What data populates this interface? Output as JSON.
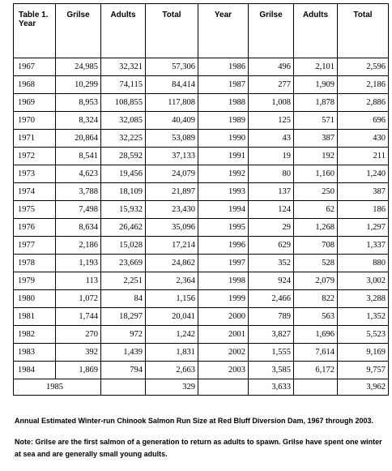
{
  "table": {
    "headers": [
      "Table 1.\nYear",
      "Grilse",
      "Adults",
      "Total",
      "Year",
      "Grilse",
      "Adults",
      "Total"
    ],
    "rows": [
      [
        "1967",
        "24,985",
        "32,321",
        "57,306",
        "1986",
        "496",
        "2,101",
        "2,596"
      ],
      [
        "1968",
        "10,299",
        "74,115",
        "84,414",
        "1987",
        "277",
        "1,909",
        "2,186"
      ],
      [
        "1969",
        "8,953",
        "108,855",
        "117,808",
        "1988",
        "1,008",
        "1,878",
        "2,886"
      ],
      [
        "1970",
        "8,324",
        "32,085",
        "40,409",
        "1989",
        "125",
        "571",
        "696"
      ],
      [
        "1971",
        "20,864",
        "32,225",
        "53,089",
        "1990",
        "43",
        "387",
        "430"
      ],
      [
        "1972",
        "8,541",
        "28,592",
        "37,133",
        "1991",
        "19",
        "192",
        "211"
      ],
      [
        "1973",
        "4,623",
        "19,456",
        "24,079",
        "1992",
        "80",
        "1,160",
        "1,240"
      ],
      [
        "1974",
        "3,788",
        "18,109",
        "21,897",
        "1993",
        "137",
        "250",
        "387"
      ],
      [
        "1975",
        "7,498",
        "15,932",
        "23,430",
        "1994",
        "124",
        "62",
        "186"
      ],
      [
        "1976",
        "8,634",
        "26,462",
        "35,096",
        "1995",
        "29",
        "1,268",
        "1,297"
      ],
      [
        "1977",
        "2,186",
        "15,028",
        "17,214",
        "1996",
        "629",
        "708",
        "1,337"
      ],
      [
        "1978",
        "1,193",
        "23,669",
        "24,862",
        "1997",
        "352",
        "528",
        "880"
      ],
      [
        "1979",
        "113",
        "2,251",
        "2,364",
        "1998",
        "924",
        "2,079",
        "3,002"
      ],
      [
        "1980",
        "1,072",
        "84",
        "1,156",
        "1999",
        "2,466",
        "822",
        "3,288"
      ],
      [
        "1981",
        "1,744",
        "18,297",
        "20,041",
        "2000",
        "789",
        "563",
        "1,352"
      ],
      [
        "1982",
        "270",
        "972",
        "1,242",
        "2001",
        "3,827",
        "1,696",
        "5,523"
      ],
      [
        "1983",
        "392",
        "1,439",
        "1,831",
        "2002",
        "1,555",
        "7,614",
        "9,169"
      ],
      [
        "1984",
        "1,869",
        "794",
        "2,663",
        "2003",
        "3,585",
        "6,172",
        "9,757"
      ]
    ],
    "last_row": [
      "1985",
      "329",
      "3,633",
      "3,962"
    ]
  },
  "caption": "Annual Estimated Winter-run Chinook Salmon Run Size at Red Bluff Diversion Dam, 1967 through 2003.",
  "note": "Note:  Grilse are the first salmon of a generation to return as adults to spawn. Grilse have spent one winter at sea and are generally small young adults."
}
